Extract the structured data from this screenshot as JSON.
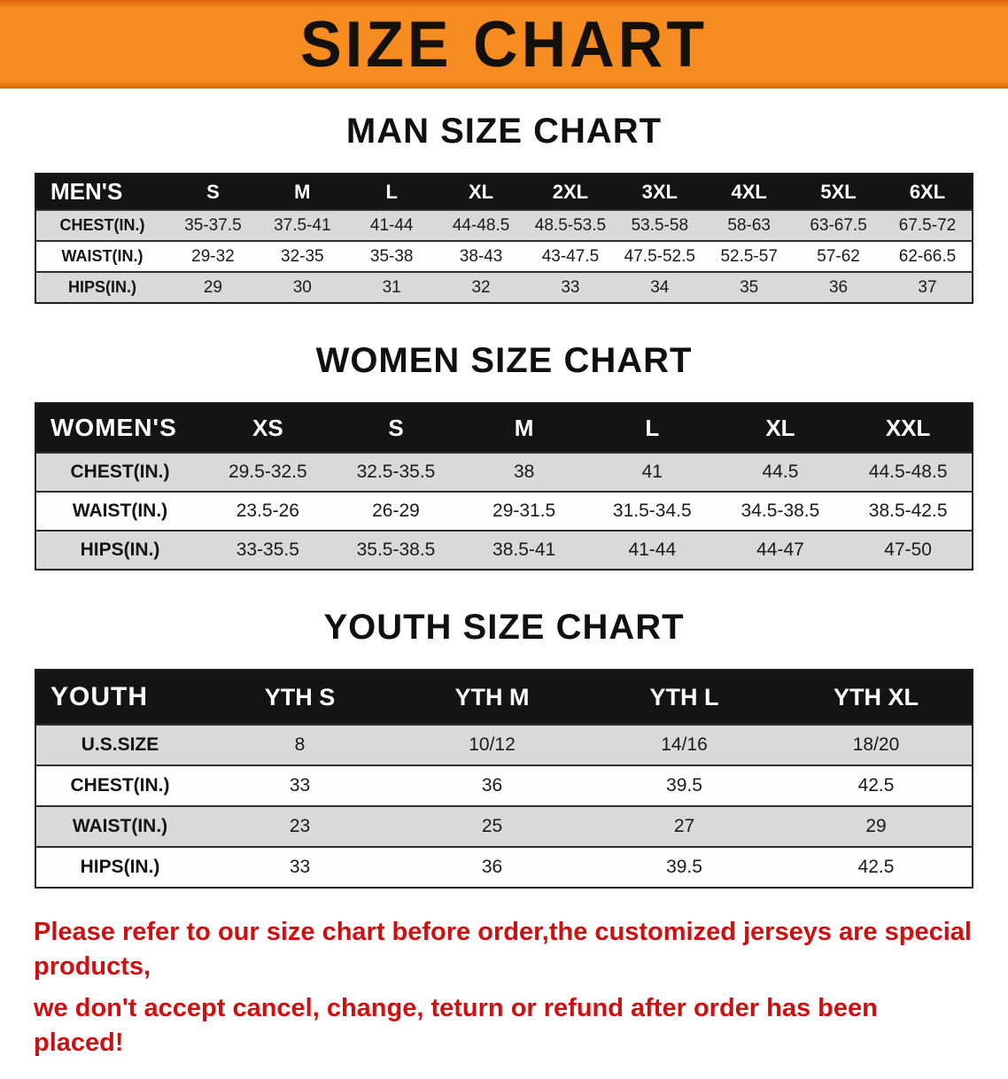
{
  "banner": {
    "title": "SIZE CHART",
    "bg_color": "#f68b1f",
    "text_color": "#14110d"
  },
  "charts": [
    {
      "id": "men",
      "heading": "MAN SIZE CHART",
      "corner_label": "MEN'S",
      "sizes": [
        "S",
        "M",
        "L",
        "XL",
        "2XL",
        "3XL",
        "4XL",
        "5XL",
        "6XL"
      ],
      "rows": [
        {
          "label": "CHEST(IN.)",
          "values": [
            "35-37.5",
            "37.5-41",
            "41-44",
            "44-48.5",
            "48.5-53.5",
            "53.5-58",
            "58-63",
            "63-67.5",
            "67.5-72"
          ]
        },
        {
          "label": "WAIST(IN.)",
          "values": [
            "29-32",
            "32-35",
            "35-38",
            "38-43",
            "43-47.5",
            "47.5-52.5",
            "52.5-57",
            "57-62",
            "62-66.5"
          ]
        },
        {
          "label": "HIPS(IN.)",
          "values": [
            "29",
            "30",
            "31",
            "32",
            "33",
            "34",
            "35",
            "36",
            "37"
          ]
        }
      ]
    },
    {
      "id": "women",
      "heading": "WOMEN SIZE CHART",
      "corner_label": "WOMEN'S",
      "sizes": [
        "XS",
        "S",
        "M",
        "L",
        "XL",
        "XXL"
      ],
      "rows": [
        {
          "label": "CHEST(IN.)",
          "values": [
            "29.5-32.5",
            "32.5-35.5",
            "38",
            "41",
            "44.5",
            "44.5-48.5"
          ]
        },
        {
          "label": "WAIST(IN.)",
          "values": [
            "23.5-26",
            "26-29",
            "29-31.5",
            "31.5-34.5",
            "34.5-38.5",
            "38.5-42.5"
          ]
        },
        {
          "label": "HIPS(IN.)",
          "values": [
            "33-35.5",
            "35.5-38.5",
            "38.5-41",
            "41-44",
            "44-47",
            "47-50"
          ]
        }
      ]
    },
    {
      "id": "youth",
      "heading": "YOUTH SIZE CHART",
      "corner_label": "YOUTH",
      "sizes": [
        "YTH S",
        "YTH M",
        "YTH L",
        "YTH XL"
      ],
      "rows": [
        {
          "label": "U.S.SIZE",
          "values": [
            "8",
            "10/12",
            "14/16",
            "18/20"
          ]
        },
        {
          "label": "CHEST(IN.)",
          "values": [
            "33",
            "36",
            "39.5",
            "42.5"
          ]
        },
        {
          "label": "WAIST(IN.)",
          "values": [
            "23",
            "25",
            "27",
            "29"
          ]
        },
        {
          "label": "HIPS(IN.)",
          "values": [
            "33",
            "36",
            "39.5",
            "42.5"
          ]
        }
      ]
    }
  ],
  "disclaimer": {
    "color": "#ce1010",
    "lines": [
      "Please refer to our size chart before order,the customized jerseys are special products,",
      "we don't accept cancel, change, teturn or refund after order has been placed!"
    ]
  }
}
